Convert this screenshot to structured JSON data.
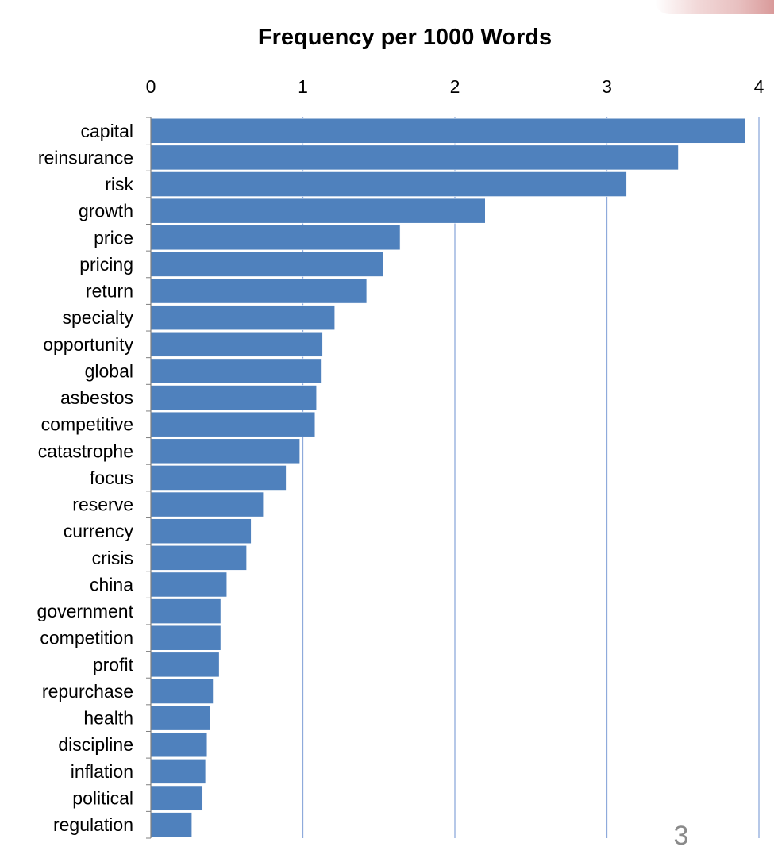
{
  "page_number": "3",
  "chart_data": {
    "type": "bar",
    "orientation": "horizontal",
    "title": "Frequency per 1000 Words",
    "xlabel": "",
    "ylabel": "",
    "xlim": [
      0,
      4
    ],
    "x_ticks": [
      "0",
      "1",
      "2",
      "3",
      "4"
    ],
    "x_axis_position": "top",
    "grid": true,
    "legend": "none",
    "bar_color": "#4F81BD",
    "grid_color": "#8EAADB",
    "categories": [
      "capital",
      "reinsurance",
      "risk",
      "growth",
      "price",
      "pricing",
      "return",
      "specialty",
      "opportunity",
      "global",
      "asbestos",
      "competitive",
      "catastrophe",
      "focus",
      "reserve",
      "currency",
      "crisis",
      "china",
      "government",
      "competition",
      "profit",
      "repurchase",
      "health",
      "discipline",
      "inflation",
      "political",
      "regulation"
    ],
    "values": [
      3.91,
      3.47,
      3.13,
      2.2,
      1.64,
      1.53,
      1.42,
      1.21,
      1.13,
      1.12,
      1.09,
      1.08,
      0.98,
      0.89,
      0.74,
      0.66,
      0.63,
      0.5,
      0.46,
      0.46,
      0.45,
      0.41,
      0.39,
      0.37,
      0.36,
      0.34,
      0.27
    ]
  }
}
